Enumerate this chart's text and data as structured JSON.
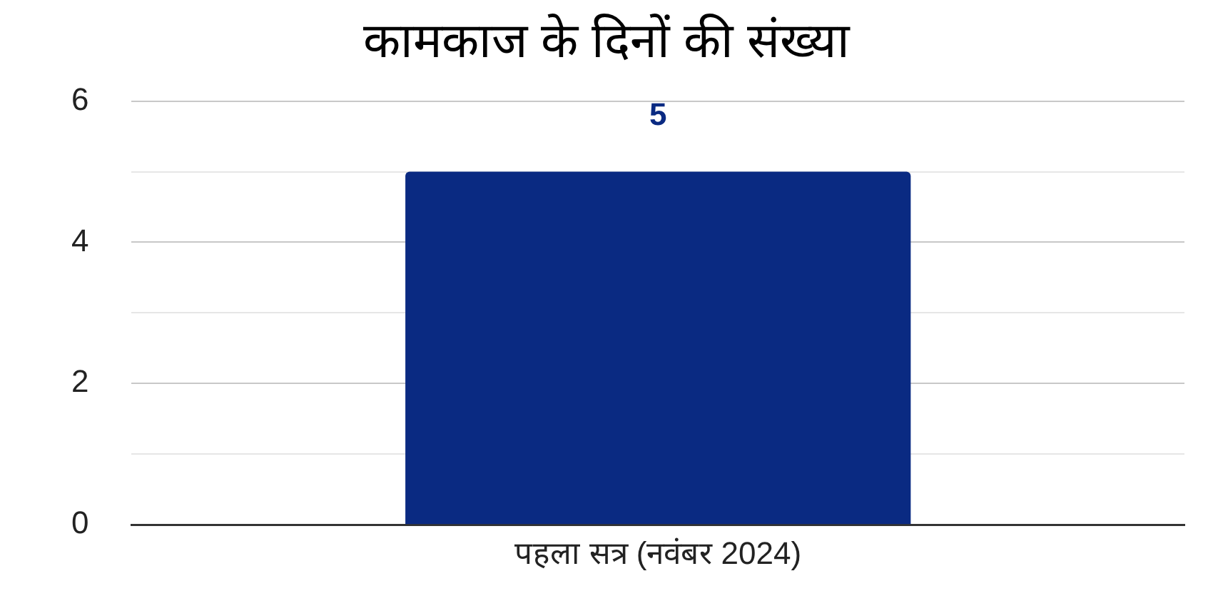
{
  "chart_data": {
    "type": "bar",
    "title": "कामकाज के दिनों की संख्या",
    "categories": [
      "पहला सत्र (नवंबर 2024)"
    ],
    "values": [
      5
    ],
    "color": "#0a2a82",
    "ylim": [
      0,
      6
    ],
    "yticks": [
      0,
      {
        "value": 1,
        "label": null
      },
      2,
      {
        "value": 3,
        "label": null
      },
      4,
      {
        "value": 5,
        "label": null
      },
      6
    ],
    "grid": "y",
    "data_labels": true
  }
}
